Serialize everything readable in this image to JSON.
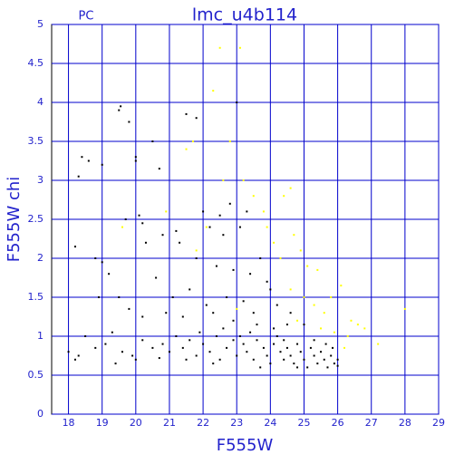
{
  "chart_data": {
    "type": "scatter",
    "title": "lmc_u4b114",
    "subtitle": "PC",
    "x_label": "F555W",
    "y_label": "F555W chi",
    "xlim": [
      17.5,
      29
    ],
    "ylim": [
      0,
      5
    ],
    "xticks": [
      18,
      19,
      20,
      21,
      22,
      23,
      24,
      25,
      26,
      27,
      28,
      29
    ],
    "yticks": [
      0,
      0.5,
      1,
      1.5,
      2,
      2.5,
      3,
      3.5,
      4,
      4.5,
      5
    ],
    "grid": true,
    "grid_color": "#0000cc",
    "series": [
      {
        "color": "#000000",
        "x": [
          19.5,
          19.55,
          19.8,
          20.0,
          20.0,
          18.4,
          18.6,
          18.3,
          19.0,
          20.5,
          20.7,
          21.5,
          21.8,
          23.0,
          20.1,
          19.7,
          20.2,
          18.2,
          18.8,
          19.0,
          20.3,
          20.8,
          21.2,
          21.3,
          22.0,
          22.2,
          22.5,
          22.6,
          22.8,
          23.1,
          23.3,
          21.8,
          22.4,
          22.9,
          23.4,
          23.7,
          23.9,
          24.0,
          19.2,
          18.9,
          19.5,
          20.6,
          21.1,
          21.6,
          22.1,
          22.7,
          23.2,
          23.5,
          24.2,
          24.6,
          24.5,
          19.8,
          20.2,
          20.9,
          21.4,
          22.3,
          22.9,
          23.6,
          24.1,
          25.0,
          18.0,
          18.3,
          18.5,
          18.8,
          19.1,
          19.3,
          19.6,
          19.9,
          20.2,
          20.5,
          20.8,
          21.0,
          21.2,
          21.4,
          21.6,
          21.8,
          22.0,
          22.2,
          22.4,
          22.5,
          22.7,
          22.9,
          23.0,
          23.2,
          23.3,
          23.5,
          23.6,
          23.8,
          23.9,
          24.0,
          24.1,
          24.3,
          24.4,
          24.5,
          24.6,
          24.7,
          24.8,
          24.9,
          25.0,
          25.1,
          25.2,
          25.3,
          25.4,
          25.5,
          25.6,
          25.7,
          25.8,
          25.9,
          26.0,
          26.0,
          25.85,
          25.65,
          24.2,
          23.4,
          22.6,
          21.9,
          20.0,
          19.4,
          18.2,
          23.7,
          24.8,
          22.3,
          21.5,
          20.7,
          25.3,
          24.4,
          23.1
        ],
        "values": [
          3.9,
          3.95,
          3.75,
          3.3,
          3.25,
          3.3,
          3.25,
          3.05,
          3.2,
          3.5,
          3.15,
          3.85,
          3.8,
          4.0,
          2.55,
          2.5,
          2.45,
          2.15,
          2.0,
          1.95,
          2.2,
          2.3,
          2.35,
          2.2,
          2.6,
          2.4,
          2.55,
          2.3,
          2.7,
          2.4,
          2.6,
          2.0,
          1.9,
          1.85,
          1.8,
          2.0,
          1.7,
          1.6,
          1.8,
          1.5,
          1.5,
          1.75,
          1.5,
          1.6,
          1.4,
          1.5,
          1.45,
          1.3,
          1.4,
          1.3,
          1.15,
          1.35,
          1.25,
          1.3,
          1.25,
          1.3,
          1.2,
          1.15,
          1.1,
          1.15,
          0.8,
          0.75,
          1.0,
          0.85,
          0.9,
          1.05,
          0.8,
          0.75,
          0.95,
          0.85,
          0.9,
          0.8,
          1.0,
          0.85,
          0.95,
          0.75,
          0.9,
          0.8,
          1.0,
          0.7,
          0.85,
          0.95,
          0.75,
          0.9,
          0.8,
          0.7,
          0.95,
          0.85,
          0.75,
          0.65,
          0.9,
          0.8,
          0.7,
          0.85,
          0.75,
          0.65,
          0.9,
          0.8,
          0.7,
          0.6,
          0.85,
          0.75,
          0.65,
          0.8,
          0.7,
          0.6,
          0.75,
          0.65,
          0.7,
          0.62,
          0.85,
          0.9,
          1.0,
          1.05,
          1.1,
          1.05,
          0.7,
          0.65,
          0.7,
          0.6,
          0.6,
          0.65,
          0.7,
          0.72,
          0.95,
          0.95,
          1.0
        ]
      },
      {
        "color": "#ffff00",
        "x": [
          22.5,
          23.1,
          22.3,
          22.8,
          21.5,
          21.7,
          22.6,
          23.2,
          23.5,
          23.8,
          24.4,
          24.6,
          22.1,
          21.8,
          23.9,
          24.1,
          24.3,
          24.7,
          24.9,
          25.1,
          25.4,
          24.6,
          25.0,
          25.3,
          25.6,
          25.8,
          26.1,
          26.4,
          26.6,
          26.8,
          26.3,
          27.2,
          28.0,
          25.5,
          25.9,
          26.2,
          24.8,
          23.0,
          19.6,
          20.9
        ],
        "values": [
          4.7,
          4.7,
          4.15,
          3.5,
          3.4,
          3.5,
          3.0,
          3.0,
          2.8,
          2.6,
          2.8,
          2.9,
          2.4,
          2.1,
          2.4,
          2.2,
          2.0,
          2.3,
          2.1,
          1.9,
          1.85,
          1.6,
          1.5,
          1.4,
          1.3,
          1.5,
          1.65,
          1.2,
          1.15,
          1.1,
          1.0,
          0.9,
          1.35,
          1.1,
          1.05,
          0.85,
          1.2,
          1.35,
          2.4,
          2.6
        ]
      }
    ]
  }
}
